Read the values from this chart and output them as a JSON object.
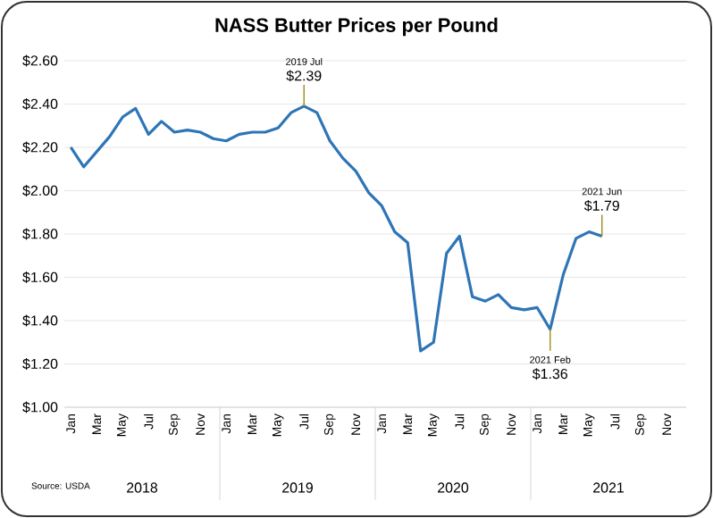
{
  "chart_data": {
    "type": "line",
    "title": "NASS Butter Prices per Pound",
    "x": [
      "2018-01",
      "2018-02",
      "2018-03",
      "2018-04",
      "2018-05",
      "2018-06",
      "2018-07",
      "2018-08",
      "2018-09",
      "2018-10",
      "2018-11",
      "2018-12",
      "2019-01",
      "2019-02",
      "2019-03",
      "2019-04",
      "2019-05",
      "2019-06",
      "2019-07",
      "2019-08",
      "2019-09",
      "2019-10",
      "2019-11",
      "2019-12",
      "2020-01",
      "2020-02",
      "2020-03",
      "2020-04",
      "2020-05",
      "2020-06",
      "2020-07",
      "2020-08",
      "2020-09",
      "2020-10",
      "2020-11",
      "2020-12",
      "2021-01",
      "2021-02",
      "2021-03",
      "2021-04",
      "2021-05",
      "2021-06"
    ],
    "values": [
      2.2,
      2.11,
      2.18,
      2.25,
      2.34,
      2.38,
      2.26,
      2.32,
      2.27,
      2.28,
      2.27,
      2.24,
      2.23,
      2.26,
      2.27,
      2.27,
      2.29,
      2.36,
      2.39,
      2.36,
      2.23,
      2.15,
      2.09,
      1.99,
      1.93,
      1.81,
      1.76,
      1.26,
      1.3,
      1.71,
      1.79,
      1.51,
      1.49,
      1.52,
      1.46,
      1.45,
      1.46,
      1.36,
      1.61,
      1.78,
      1.81,
      1.79
    ],
    "color": "#2e75b6",
    "line_style": "solid",
    "marker": "none",
    "grid": "y",
    "xlim": [
      "2017-12-16",
      "2021-12-16"
    ],
    "xticks": [
      {
        "value": "2018-01",
        "label": "Jan"
      },
      {
        "value": "2018-03",
        "label": "Mar"
      },
      {
        "value": "2018-05",
        "label": "May"
      },
      {
        "value": "2018-07",
        "label": "Jul"
      },
      {
        "value": "2018-09",
        "label": "Sep"
      },
      {
        "value": "2018-11",
        "label": "Nov"
      },
      {
        "value": "2019-01",
        "label": "Jan"
      },
      {
        "value": "2019-03",
        "label": "Mar"
      },
      {
        "value": "2019-05",
        "label": "May"
      },
      {
        "value": "2019-07",
        "label": "Jul"
      },
      {
        "value": "2019-09",
        "label": "Sep"
      },
      {
        "value": "2019-11",
        "label": "Nov"
      },
      {
        "value": "2020-01",
        "label": "Jan"
      },
      {
        "value": "2020-03",
        "label": "Mar"
      },
      {
        "value": "2020-05",
        "label": "May"
      },
      {
        "value": "2020-07",
        "label": "Jul"
      },
      {
        "value": "2020-09",
        "label": "Sep"
      },
      {
        "value": "2020-11",
        "label": "Nov"
      },
      {
        "value": "2021-01",
        "label": "Jan"
      },
      {
        "value": "2021-03",
        "label": "Mar"
      },
      {
        "value": "2021-05",
        "label": "May"
      },
      {
        "value": "2021-07",
        "label": "Jul"
      },
      {
        "value": "2021-09",
        "label": "Sep"
      },
      {
        "value": "2021-11",
        "label": "Nov"
      }
    ],
    "ylim": [
      1.0,
      2.6
    ],
    "yticks": [
      {
        "value": 1.0,
        "label": "$1.00"
      },
      {
        "value": 1.2,
        "label": "$1.20"
      },
      {
        "value": 1.4,
        "label": "$1.40"
      },
      {
        "value": 1.6,
        "label": "$1.60"
      },
      {
        "value": 1.8,
        "label": "$1.80"
      },
      {
        "value": 2.0,
        "label": "$2.00"
      },
      {
        "value": 2.2,
        "label": "$2.20"
      },
      {
        "value": 2.4,
        "label": "$2.40"
      },
      {
        "value": 2.6,
        "label": "$2.60"
      }
    ],
    "annotations": [
      "Source: USDA",
      "2018",
      "2019",
      "2020",
      "2021",
      "2019 Jul",
      "2021 Jun",
      "2021 Feb",
      {
        "text": "$2.39",
        "x": "2019-07",
        "y": 2.39
      },
      {
        "text": "$1.79",
        "x": "2021-06",
        "y": 1.79
      },
      {
        "text": "$1.36",
        "x": "2021-02",
        "y": 1.36
      }
    ]
  }
}
